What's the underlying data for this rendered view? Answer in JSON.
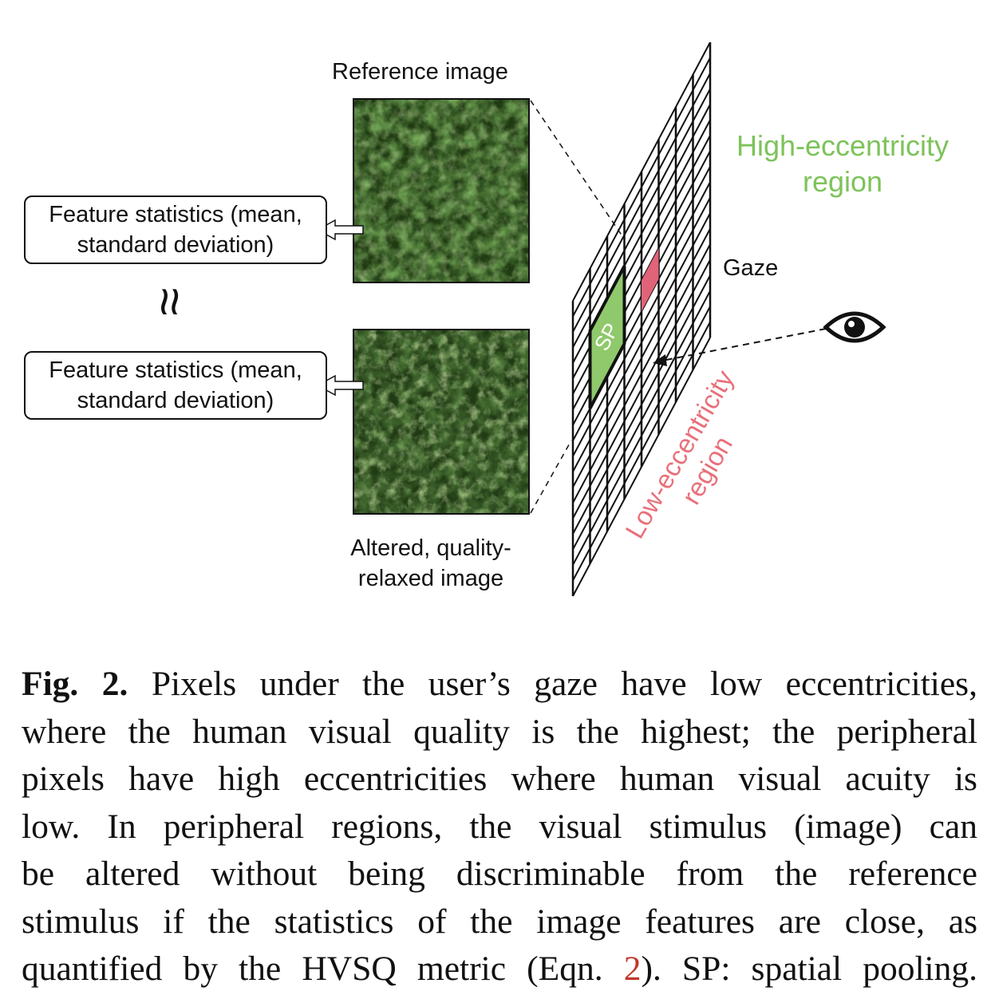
{
  "figure": {
    "reference_label": "Reference image",
    "altered_label_line1": "Altered, quality-",
    "altered_label_line2": "relaxed image",
    "feature_box_1": {
      "line1": "Feature statistics (mean,",
      "line2": "standard deviation)"
    },
    "feature_box_2": {
      "line1": "Feature statistics (mean,",
      "line2": "standard deviation)"
    },
    "approx_symbol": "≈",
    "high_ecc_line1": "High-eccentricity",
    "high_ecc_line2": "region",
    "low_ecc_line1": "Low-eccentricity",
    "low_ecc_line2": "region",
    "gaze_label": "Gaze",
    "sp_label": "SP",
    "colors": {
      "high": "#7dc35a",
      "low": "#e8707a",
      "sp_fill": "#8fc96b",
      "gaze_cell": "#e06378"
    }
  },
  "caption": {
    "fig_label": "Fig. 2.",
    "line1_rest": "Pixels under the user’s gaze have low eccentricities,",
    "line2": "where the human visual quality is the highest; the peripheral",
    "line3": "pixels have high eccentricities where human visual acuity is",
    "line4": "low. In peripheral regions, the visual stimulus (image) can",
    "line5": "be altered without being discriminable from the reference",
    "line6": "stimulus if the statistics of the image features are close, as",
    "line7_start": "quantified by the HVSQ metric (Eqn.",
    "eqn_ref": "2",
    "line7_end": "). SP: spatial pooling."
  }
}
